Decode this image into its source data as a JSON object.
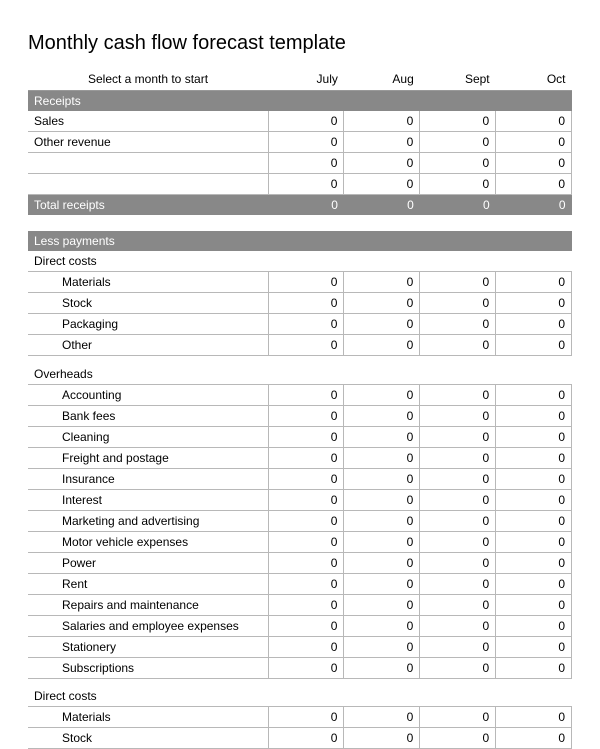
{
  "title": "Monthly cash flow forecast template",
  "header": {
    "select_label": "Select a month to start",
    "months": [
      "July",
      "Aug",
      "Sept",
      "Oct"
    ]
  },
  "colors": {
    "section_bg": "#888888",
    "section_fg": "#ffffff",
    "grid": "#b8b8b8",
    "header_border": "#999999",
    "text": "#000000",
    "background": "#ffffff"
  },
  "fonts": {
    "title_size": 20,
    "body_size": 12,
    "family": "Arial"
  },
  "sections": {
    "receipts": {
      "label": "Receipts",
      "rows": [
        {
          "label": "Sales",
          "values": [
            0,
            0,
            0,
            0
          ]
        },
        {
          "label": "Other revenue",
          "values": [
            0,
            0,
            0,
            0
          ]
        },
        {
          "label": "",
          "values": [
            0,
            0,
            0,
            0
          ]
        },
        {
          "label": "",
          "values": [
            0,
            0,
            0,
            0
          ]
        }
      ],
      "total": {
        "label": "Total receipts",
        "values": [
          0,
          0,
          0,
          0
        ]
      }
    },
    "less_payments": {
      "label": "Less payments",
      "groups": [
        {
          "label": "Direct costs",
          "rows": [
            {
              "label": "Materials",
              "values": [
                0,
                0,
                0,
                0
              ]
            },
            {
              "label": "Stock",
              "values": [
                0,
                0,
                0,
                0
              ]
            },
            {
              "label": "Packaging",
              "values": [
                0,
                0,
                0,
                0
              ]
            },
            {
              "label": "Other",
              "values": [
                0,
                0,
                0,
                0
              ]
            }
          ]
        },
        {
          "label": "Overheads",
          "rows": [
            {
              "label": "Accounting",
              "values": [
                0,
                0,
                0,
                0
              ]
            },
            {
              "label": "Bank fees",
              "values": [
                0,
                0,
                0,
                0
              ]
            },
            {
              "label": "Cleaning",
              "values": [
                0,
                0,
                0,
                0
              ]
            },
            {
              "label": "Freight and postage",
              "values": [
                0,
                0,
                0,
                0
              ]
            },
            {
              "label": "Insurance",
              "values": [
                0,
                0,
                0,
                0
              ]
            },
            {
              "label": "Interest",
              "values": [
                0,
                0,
                0,
                0
              ]
            },
            {
              "label": "Marketing and advertising",
              "values": [
                0,
                0,
                0,
                0
              ]
            },
            {
              "label": "Motor vehicle expenses",
              "values": [
                0,
                0,
                0,
                0
              ]
            },
            {
              "label": "Power",
              "values": [
                0,
                0,
                0,
                0
              ]
            },
            {
              "label": "Rent",
              "values": [
                0,
                0,
                0,
                0
              ]
            },
            {
              "label": "Repairs and maintenance",
              "values": [
                0,
                0,
                0,
                0
              ]
            },
            {
              "label": "Salaries and employee expenses",
              "values": [
                0,
                0,
                0,
                0
              ]
            },
            {
              "label": "Stationery",
              "values": [
                0,
                0,
                0,
                0
              ]
            },
            {
              "label": "Subscriptions",
              "values": [
                0,
                0,
                0,
                0
              ]
            }
          ]
        },
        {
          "label": "Direct costs",
          "rows": [
            {
              "label": "Materials",
              "values": [
                0,
                0,
                0,
                0
              ]
            },
            {
              "label": "Stock",
              "values": [
                0,
                0,
                0,
                0
              ]
            }
          ]
        }
      ]
    }
  }
}
